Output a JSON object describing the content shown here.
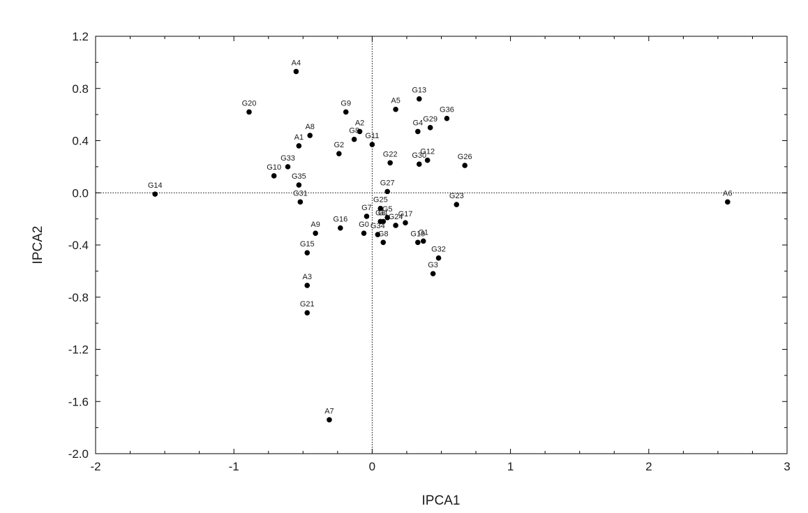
{
  "chart_data": {
    "type": "scatter",
    "xlabel": "IPCA1",
    "ylabel": "IPCA2",
    "xlim": [
      -2,
      3
    ],
    "ylim": [
      -2.0,
      1.2
    ],
    "x_ticks": [
      "-2",
      "-1",
      "0",
      "1",
      "2",
      "3"
    ],
    "y_ticks": [
      "1.2",
      "0.8",
      "0.4",
      "0.0",
      "-0.4",
      "-0.8",
      "-1.2",
      "-1.6",
      "-2.0"
    ],
    "reference_lines": {
      "x": 0,
      "y": 0
    },
    "grid": false,
    "points": [
      {
        "label": "A4",
        "x": -0.55,
        "y": 0.93
      },
      {
        "label": "G20",
        "x": -0.89,
        "y": 0.62
      },
      {
        "label": "G9",
        "x": -0.19,
        "y": 0.62
      },
      {
        "label": "A5",
        "x": 0.17,
        "y": 0.64
      },
      {
        "label": "G13",
        "x": 0.34,
        "y": 0.72
      },
      {
        "label": "G36",
        "x": 0.54,
        "y": 0.57
      },
      {
        "label": "G29",
        "x": 0.42,
        "y": 0.5
      },
      {
        "label": "G4",
        "x": 0.33,
        "y": 0.47
      },
      {
        "label": "A2",
        "x": -0.09,
        "y": 0.47
      },
      {
        "label": "G8",
        "x": -0.13,
        "y": 0.41
      },
      {
        "label": "G11",
        "x": 0.0,
        "y": 0.37
      },
      {
        "label": "A8",
        "x": -0.45,
        "y": 0.44
      },
      {
        "label": "A1",
        "x": -0.53,
        "y": 0.36
      },
      {
        "label": "G2",
        "x": -0.24,
        "y": 0.3
      },
      {
        "label": "G33",
        "x": -0.61,
        "y": 0.2
      },
      {
        "label": "G10",
        "x": -0.71,
        "y": 0.13
      },
      {
        "label": "G35",
        "x": -0.53,
        "y": 0.06
      },
      {
        "label": "G22",
        "x": 0.13,
        "y": 0.23
      },
      {
        "label": "G30",
        "x": 0.34,
        "y": 0.22
      },
      {
        "label": "G12",
        "x": 0.4,
        "y": 0.25
      },
      {
        "label": "G26",
        "x": 0.67,
        "y": 0.21
      },
      {
        "label": "G14",
        "x": -1.57,
        "y": -0.01
      },
      {
        "label": "G27",
        "x": 0.11,
        "y": 0.01
      },
      {
        "label": "G31",
        "x": -0.52,
        "y": -0.07
      },
      {
        "label": "G23",
        "x": 0.61,
        "y": -0.09
      },
      {
        "label": "A6",
        "x": 2.57,
        "y": -0.07
      },
      {
        "label": "G25",
        "x": 0.06,
        "y": -0.12
      },
      {
        "label": "G7",
        "x": -0.04,
        "y": -0.18
      },
      {
        "label": "G5",
        "x": 0.11,
        "y": -0.19
      },
      {
        "label": "G6",
        "x": 0.06,
        "y": -0.22
      },
      {
        "label": "G1",
        "x": 0.08,
        "y": -0.22
      },
      {
        "label": "G24",
        "x": 0.17,
        "y": -0.25
      },
      {
        "label": "G17",
        "x": 0.24,
        "y": -0.23
      },
      {
        "label": "G16",
        "x": -0.23,
        "y": -0.27
      },
      {
        "label": "A9",
        "x": -0.41,
        "y": -0.31
      },
      {
        "label": "G0",
        "x": -0.06,
        "y": -0.31
      },
      {
        "label": "G34",
        "x": 0.04,
        "y": -0.32
      },
      {
        "label": "G8",
        "x": 0.08,
        "y": -0.38
      },
      {
        "label": "G19",
        "x": 0.33,
        "y": -0.38
      },
      {
        "label": "G1",
        "x": 0.37,
        "y": -0.37
      },
      {
        "label": "G15",
        "x": -0.47,
        "y": -0.46
      },
      {
        "label": "G32",
        "x": 0.48,
        "y": -0.5
      },
      {
        "label": "G3",
        "x": 0.44,
        "y": -0.62
      },
      {
        "label": "A3",
        "x": -0.47,
        "y": -0.71
      },
      {
        "label": "G21",
        "x": -0.47,
        "y": -0.92
      },
      {
        "label": "A7",
        "x": -0.31,
        "y": -1.74
      }
    ]
  }
}
